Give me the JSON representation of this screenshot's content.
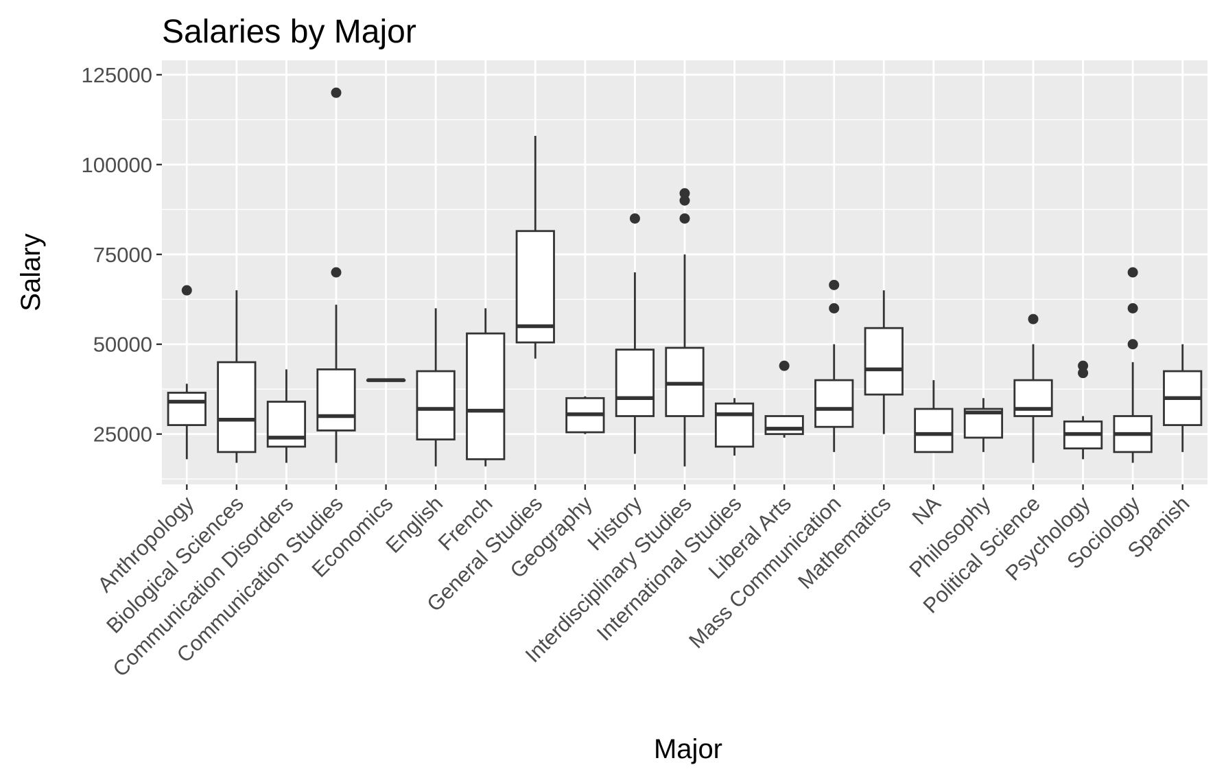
{
  "chart_data": {
    "type": "boxplot",
    "title": "Salaries by Major",
    "xlabel": "Major",
    "ylabel": "Salary",
    "ylim": [
      11000,
      129000
    ],
    "yticks": [
      25000,
      50000,
      75000,
      100000,
      125000
    ],
    "ytick_labels": [
      "25000",
      "50000",
      "75000",
      "100000",
      "125000"
    ],
    "grid": true,
    "background": "#ebebeb",
    "categories": [
      "Anthropology",
      "Biological Sciences",
      "Communication Disorders",
      "Communication Studies",
      "Economics",
      "English",
      "French",
      "General Studies",
      "Geography",
      "History",
      "Interdisciplinary Studies",
      "International Studies",
      "Liberal Arts",
      "Mass Communication",
      "Mathematics",
      "NA",
      "Philosophy",
      "Political Science",
      "Psychology",
      "Sociology",
      "Spanish"
    ],
    "boxes": [
      {
        "min": 18000,
        "q1": 27500,
        "median": 34000,
        "q3": 36500,
        "max": 39000,
        "outliers": [
          65000
        ]
      },
      {
        "min": 17000,
        "q1": 20000,
        "median": 29000,
        "q3": 45000,
        "max": 65000,
        "outliers": []
      },
      {
        "min": 17000,
        "q1": 21500,
        "median": 24000,
        "q3": 34000,
        "max": 43000,
        "outliers": []
      },
      {
        "min": 17000,
        "q1": 26000,
        "median": 30000,
        "q3": 43000,
        "max": 61000,
        "outliers": [
          70000,
          120000
        ]
      },
      {
        "min": 40000,
        "q1": 40000,
        "median": 40000,
        "q3": 40000,
        "max": 40000,
        "outliers": []
      },
      {
        "min": 16000,
        "q1": 23500,
        "median": 32000,
        "q3": 42500,
        "max": 60000,
        "outliers": []
      },
      {
        "min": 16000,
        "q1": 18000,
        "median": 31500,
        "q3": 53000,
        "max": 60000,
        "outliers": []
      },
      {
        "min": 46000,
        "q1": 50500,
        "median": 55000,
        "q3": 81500,
        "max": 108000,
        "outliers": []
      },
      {
        "min": 25000,
        "q1": 25500,
        "median": 30500,
        "q3": 35000,
        "max": 35500,
        "outliers": []
      },
      {
        "min": 19500,
        "q1": 30000,
        "median": 35000,
        "q3": 48500,
        "max": 70000,
        "outliers": [
          85000
        ]
      },
      {
        "min": 16000,
        "q1": 30000,
        "median": 39000,
        "q3": 49000,
        "max": 75000,
        "outliers": [
          85000,
          90000,
          92000
        ]
      },
      {
        "min": 19000,
        "q1": 21500,
        "median": 30500,
        "q3": 33500,
        "max": 35000,
        "outliers": []
      },
      {
        "min": 24000,
        "q1": 25000,
        "median": 26500,
        "q3": 30000,
        "max": 30000,
        "outliers": [
          44000
        ]
      },
      {
        "min": 20000,
        "q1": 27000,
        "median": 32000,
        "q3": 40000,
        "max": 50000,
        "outliers": [
          60000,
          66500
        ]
      },
      {
        "min": 25000,
        "q1": 36000,
        "median": 43000,
        "q3": 54500,
        "max": 65000,
        "outliers": []
      },
      {
        "min": 20000,
        "q1": 20000,
        "median": 25000,
        "q3": 32000,
        "max": 40000,
        "outliers": []
      },
      {
        "min": 20000,
        "q1": 24000,
        "median": 31000,
        "q3": 32000,
        "max": 35000,
        "outliers": []
      },
      {
        "min": 17000,
        "q1": 30000,
        "median": 32000,
        "q3": 40000,
        "max": 50000,
        "outliers": [
          57000
        ]
      },
      {
        "min": 18000,
        "q1": 21000,
        "median": 25000,
        "q3": 28500,
        "max": 30000,
        "outliers": [
          42000,
          44000
        ]
      },
      {
        "min": 17000,
        "q1": 20000,
        "median": 25000,
        "q3": 30000,
        "max": 45000,
        "outliers": [
          50000,
          60000,
          70000
        ]
      },
      {
        "min": 20000,
        "q1": 27500,
        "median": 35000,
        "q3": 42500,
        "max": 50000,
        "outliers": []
      }
    ]
  }
}
